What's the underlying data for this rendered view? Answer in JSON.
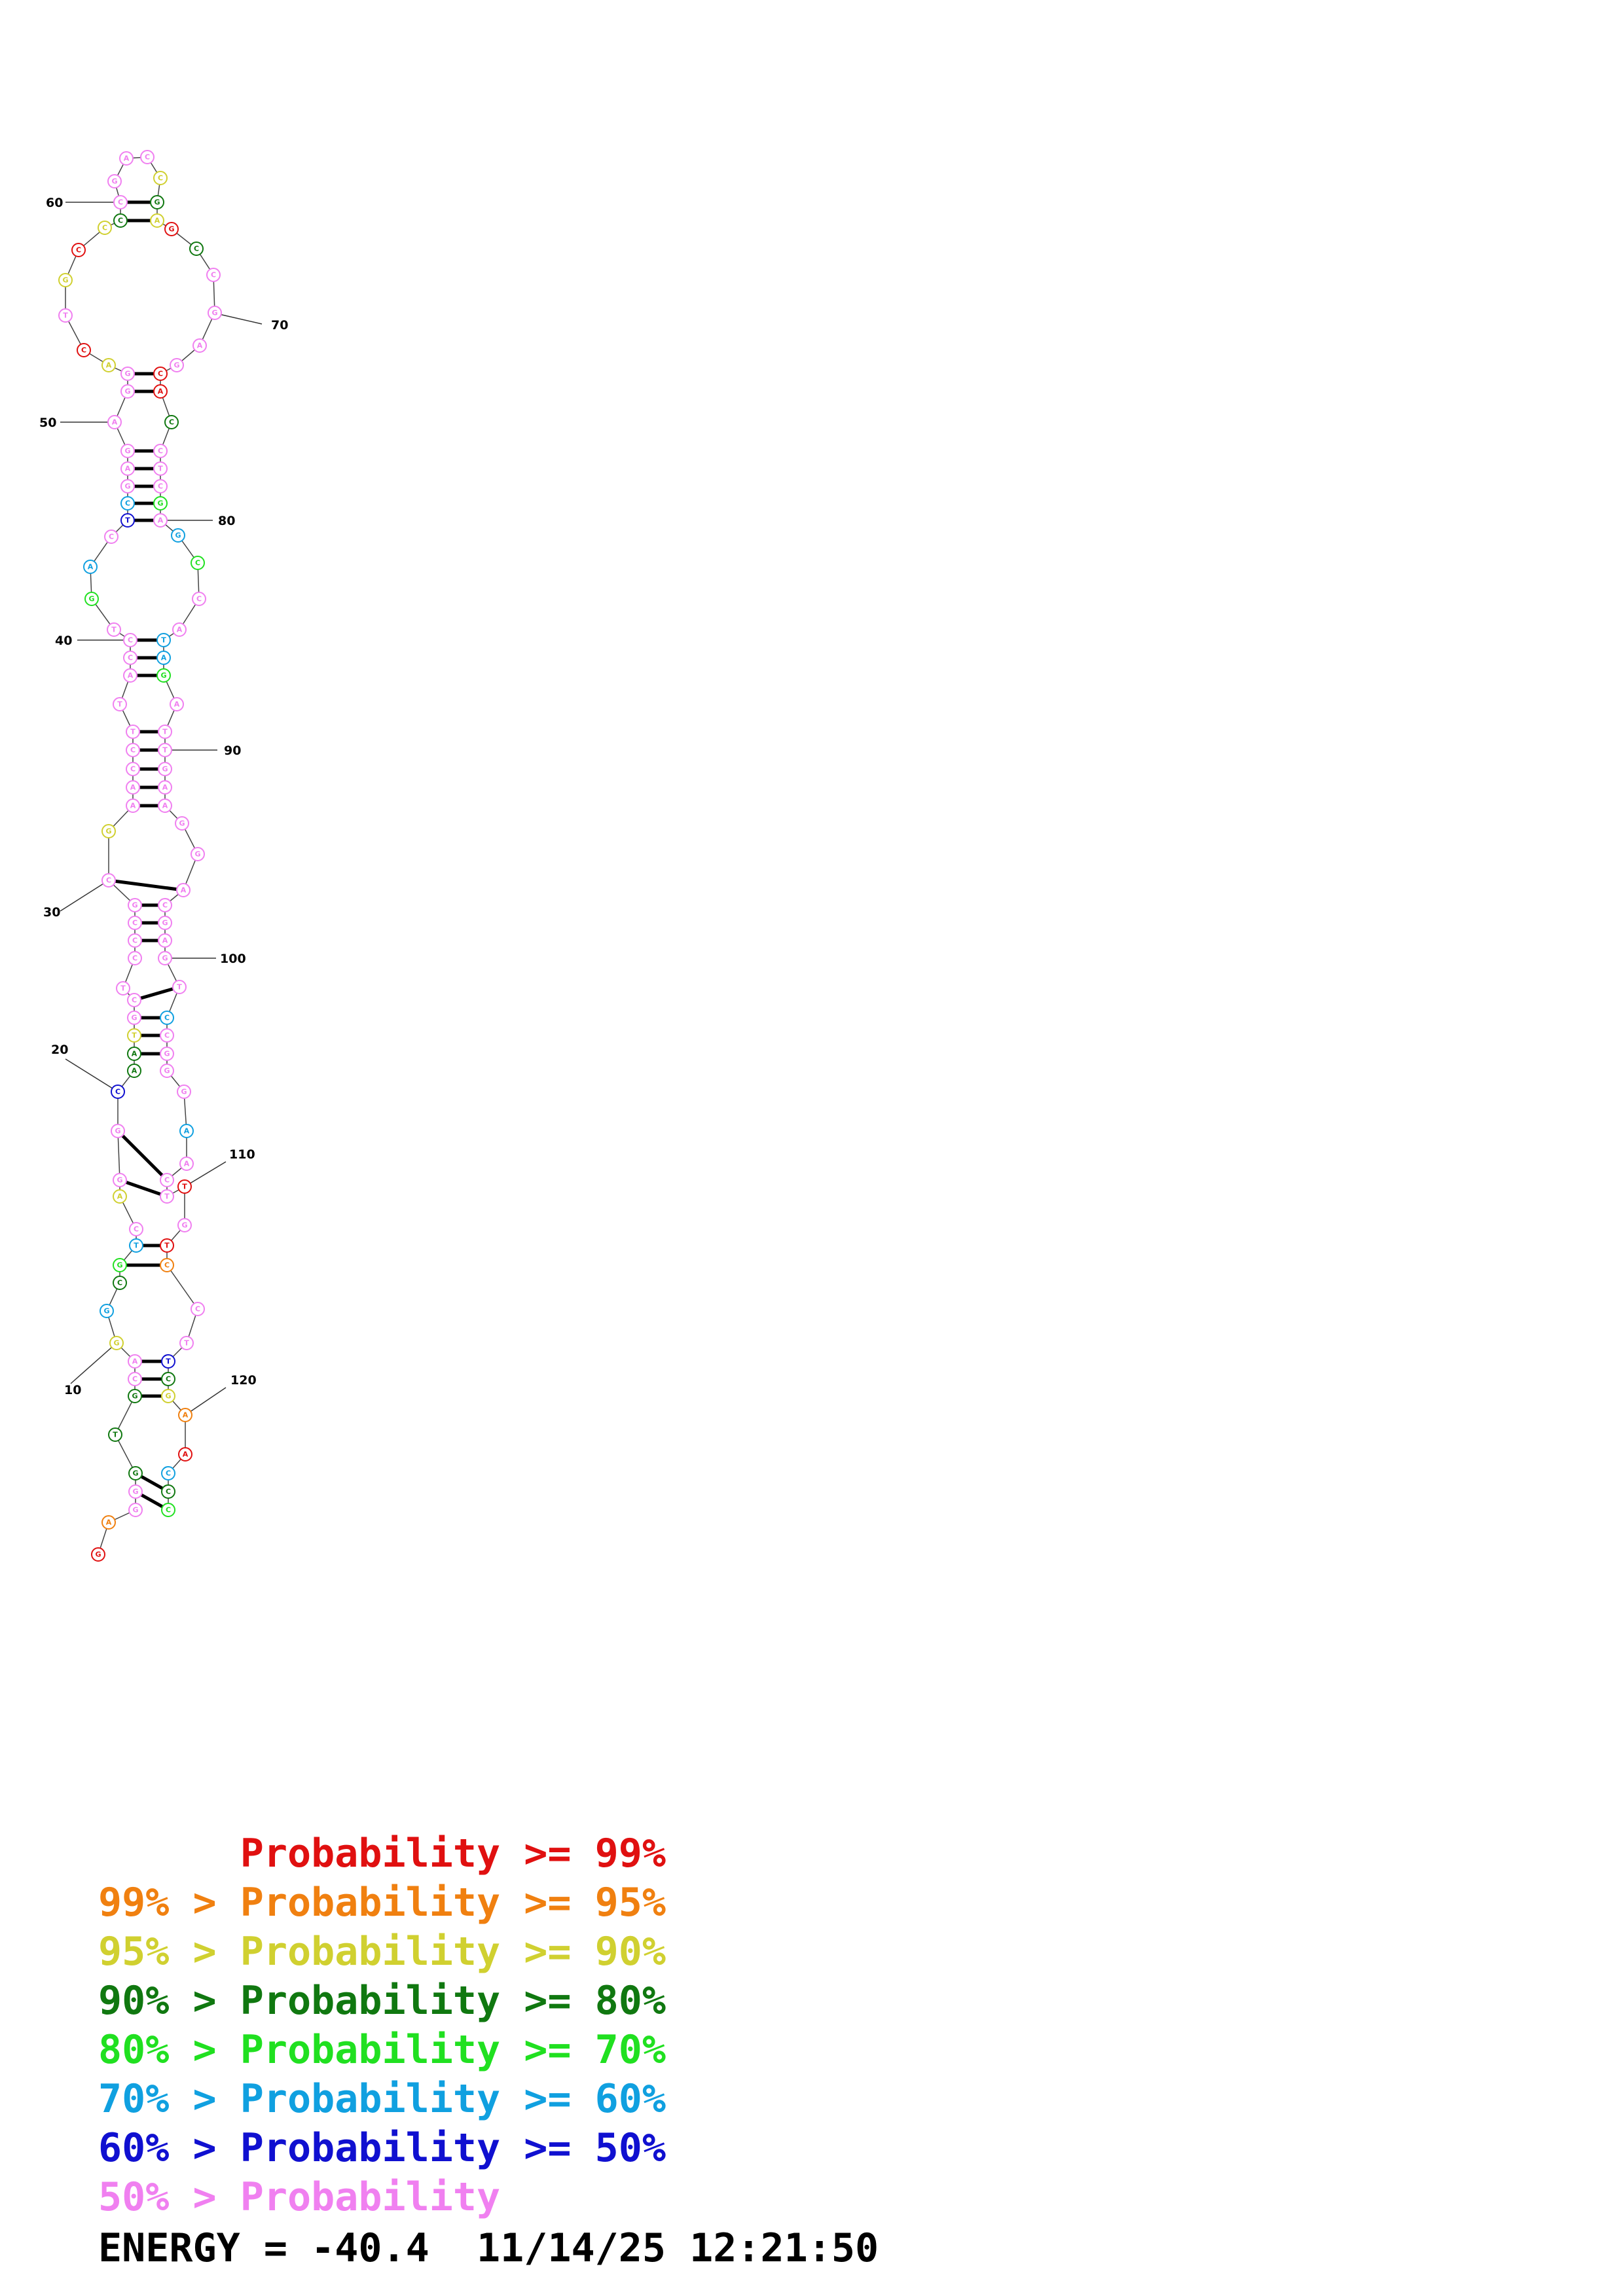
{
  "structure": {
    "sequence": "GAGGGTGCAGGCGTCAGGCAATGCTCCCGCGAACCTTACCTGACTCGAGAGGACTGCCCCGACCGAGCCGAGCACCTCGAGCCATAGATTGAAGGACGAGTCCGGGAACTTGTCCTTCGAACCC",
    "position_labels": [
      "10",
      "20",
      "30",
      "40",
      "50",
      "60",
      "70",
      "80",
      "90",
      "100",
      "110",
      "120"
    ],
    "colors": {
      "p99": "#e01010",
      "p95": "#f08010",
      "p90": "#d0d030",
      "p80": "#107810",
      "p70": "#20e020",
      "p60": "#10a0e0",
      "p50": "#1010d0",
      "plow": "#f080f0"
    }
  },
  "legend": [
    {
      "text": "      Probability >= 99%",
      "color": "#e01010"
    },
    {
      "text": "99% > Probability >= 95%",
      "color": "#f08010"
    },
    {
      "text": "95% > Probability >= 90%",
      "color": "#d0d030"
    },
    {
      "text": "90% > Probability >= 80%",
      "color": "#107810"
    },
    {
      "text": "80% > Probability >= 70%",
      "color": "#20e020"
    },
    {
      "text": "70% > Probability >= 60%",
      "color": "#10a0e0"
    },
    {
      "text": "60% > Probability >= 50%",
      "color": "#1010d0"
    },
    {
      "text": "50% > Probability",
      "color": "#f080f0"
    }
  ],
  "footer": {
    "energy": "ENERGY = -40.4  11/14/25 12:21:50"
  }
}
